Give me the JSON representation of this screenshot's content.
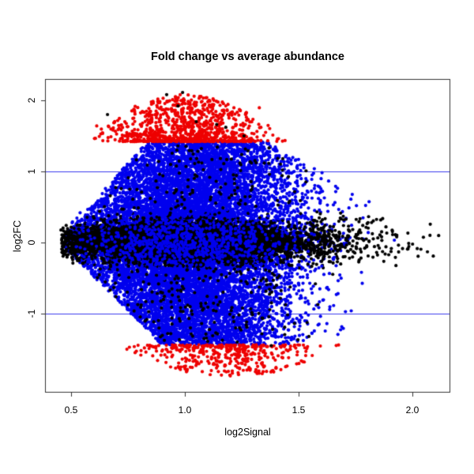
{
  "chart_data": {
    "type": "scatter",
    "title": "Fold change vs average abundance",
    "xlabel": "log2Signal",
    "ylabel": "log2FC",
    "xlim": [
      0.39,
      2.16
    ],
    "ylim": [
      -2.1,
      2.29
    ],
    "x_ticks": [
      {
        "value": 0.5,
        "label": "0.5"
      },
      {
        "value": 1.0,
        "label": "1.0"
      },
      {
        "value": 1.5,
        "label": "1.5"
      },
      {
        "value": 2.0,
        "label": "2.0"
      }
    ],
    "y_ticks": [
      {
        "value": 2,
        "label": "2"
      },
      {
        "value": 1,
        "label": "1"
      },
      {
        "value": 0,
        "label": "0"
      },
      {
        "value": -1,
        "label": "-1"
      }
    ],
    "grid": false,
    "legend": null,
    "axis_color": "#333333",
    "point_radius": 2.1,
    "threshold_lines": {
      "y_values": [
        1,
        -1
      ],
      "color": "#3b3bee"
    },
    "colors": {
      "black": "#000000",
      "blue": "#0000ee",
      "red": "#ee0000"
    },
    "seed": 20240613,
    "envelopes": {
      "top": {
        "cap": 1.42,
        "left_x0": 0.44,
        "left_slope": 3.6,
        "right_x0": 1.36,
        "right_slope": 1.8
      },
      "bottom": {
        "cap": 1.44,
        "left_x0": 0.45,
        "left_slope": 3.2,
        "right_x0": 1.62,
        "right_slope": 2.4
      }
    },
    "clusters": [
      {
        "name": "blue-main-cloud",
        "color": "blue",
        "n": 13000,
        "x": {
          "dist": "normal",
          "mean": 1.03,
          "sd": 0.23,
          "min": 0.47,
          "max": 1.95
        },
        "y": {
          "dist": "band",
          "power": 1.35,
          "scale": 1.0
        }
      },
      {
        "name": "black-core-band",
        "color": "black",
        "n": 7200,
        "x": {
          "dist": "normal",
          "mean": 1.0,
          "sd": 0.26,
          "min": 0.455,
          "max": 1.62
        },
        "y": {
          "dist": "normal",
          "mean": 0,
          "sd": 0.125,
          "min": -0.5,
          "max": 0.5
        }
      },
      {
        "name": "black-right-tail",
        "color": "black",
        "n": 260,
        "x": {
          "dist": "halfnormal",
          "base": 1.55,
          "sd": 0.22,
          "max": 2.12
        },
        "y": {
          "dist": "normal",
          "mean": 0,
          "sd": 0.16,
          "min": -0.55,
          "max": 0.55
        }
      },
      {
        "name": "black-in-cloud-scatter",
        "color": "black",
        "n": 520,
        "x": {
          "dist": "normal",
          "mean": 1.05,
          "sd": 0.25,
          "min": 0.46,
          "max": 1.78
        },
        "y": {
          "dist": "band",
          "power": 1.1,
          "scale": 0.97
        }
      },
      {
        "name": "blue-over-core-sprinkle",
        "color": "blue",
        "n": 900,
        "x": {
          "dist": "normal",
          "mean": 1.0,
          "sd": 0.24,
          "min": 0.5,
          "max": 1.7
        },
        "y": {
          "dist": "normal",
          "mean": 0,
          "sd": 0.2,
          "min": -0.55,
          "max": 0.55
        }
      },
      {
        "name": "red-top-mound",
        "color": "red",
        "n": 880,
        "x": {
          "dist": "normal",
          "mean": 1.0,
          "sd": 0.16,
          "min": 0.6,
          "max": 1.47
        },
        "y": {
          "dist": "cap",
          "side": 1,
          "base": 1.42,
          "hmax": 0.66,
          "center": 1.0,
          "halfwidth": 0.44,
          "power": 2.0,
          "floor": 0.03,
          "limit": 2.09
        }
      },
      {
        "name": "red-top-scatter",
        "color": "red",
        "n": 45,
        "x": {
          "dist": "normal",
          "mean": 1.0,
          "sd": 0.22,
          "min": 0.58,
          "max": 1.5
        },
        "y": {
          "dist": "normal",
          "mean": 1.62,
          "sd": 0.15,
          "min": 1.44,
          "max": 2.05
        }
      },
      {
        "name": "red-bottom-wedge",
        "color": "red",
        "n": 380,
        "x": {
          "dist": "normal",
          "mean": 1.18,
          "sd": 0.2,
          "min": 0.74,
          "max": 1.68
        },
        "y": {
          "dist": "cap",
          "side": -1,
          "base": -1.44,
          "hmax": 0.44,
          "center": 1.2,
          "halfwidth": 0.52,
          "power": 1.8,
          "floor": 0.05,
          "limit": -1.93
        }
      }
    ],
    "outlier_points": {
      "color": "black",
      "points": [
        [
          0.92,
          2.08
        ],
        [
          0.99,
          2.11
        ],
        [
          0.66,
          1.8
        ],
        [
          1.14,
          1.66
        ],
        [
          1.18,
          1.62
        ],
        [
          1.05,
          1.7
        ],
        [
          0.97,
          1.92
        ],
        [
          1.26,
          1.5
        ],
        [
          1.38,
          -1.45
        ],
        [
          1.23,
          -1.4
        ]
      ]
    }
  }
}
